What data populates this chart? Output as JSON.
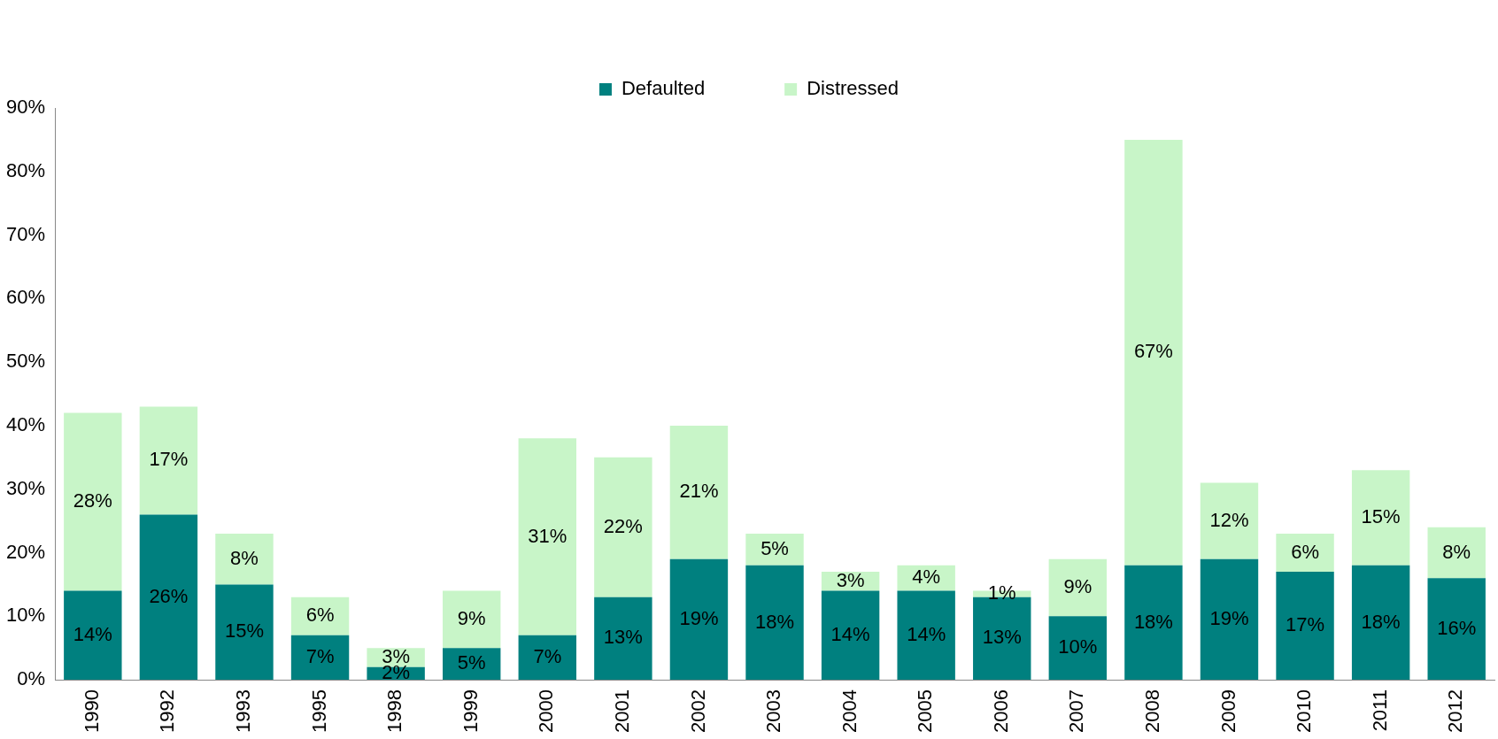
{
  "chart_data": {
    "type": "bar",
    "stacked": true,
    "legend": "top",
    "grid": false,
    "categories": [
      "1990",
      "1992",
      "1993",
      "1995",
      "1998",
      "1999",
      "2000",
      "2001",
      "2002",
      "2003",
      "2004",
      "2005",
      "2006",
      "2007",
      "2008",
      "2009",
      "2010",
      "2011",
      "2012"
    ],
    "series": [
      {
        "name": "Defaulted",
        "color": "#00807f",
        "values": [
          14,
          26,
          15,
          7,
          2,
          5,
          7,
          13,
          19,
          18,
          14,
          14,
          13,
          10,
          18,
          19,
          17,
          18,
          16
        ],
        "value_labels": [
          "14%",
          "26%",
          "15%",
          "7%",
          "2%",
          "5%",
          "7%",
          "13%",
          "19%",
          "18%",
          "14%",
          "14%",
          "13%",
          "10%",
          "18%",
          "19%",
          "17%",
          "18%",
          "16%"
        ]
      },
      {
        "name": "Distressed",
        "color": "#c8f5c8",
        "values": [
          28,
          17,
          8,
          6,
          3,
          9,
          31,
          22,
          21,
          5,
          3,
          4,
          1,
          9,
          67,
          12,
          6,
          15,
          8
        ],
        "value_labels": [
          "28%",
          "17%",
          "8%",
          "6%",
          "3%",
          "9%",
          "31%",
          "22%",
          "21%",
          "5%",
          "3%",
          "4%",
          "1%",
          "9%",
          "67%",
          "12%",
          "6%",
          "15%",
          "8%"
        ]
      }
    ],
    "ylim": [
      0,
      90
    ],
    "yticks": [
      {
        "value": 0,
        "label": "0%"
      },
      {
        "value": 10,
        "label": "10%"
      },
      {
        "value": 20,
        "label": "20%"
      },
      {
        "value": 30,
        "label": "30%"
      },
      {
        "value": 40,
        "label": "40%"
      },
      {
        "value": 50,
        "label": "50%"
      },
      {
        "value": 60,
        "label": "60%"
      },
      {
        "value": 70,
        "label": "70%"
      },
      {
        "value": 80,
        "label": "80%"
      },
      {
        "value": 90,
        "label": "90%"
      }
    ]
  }
}
